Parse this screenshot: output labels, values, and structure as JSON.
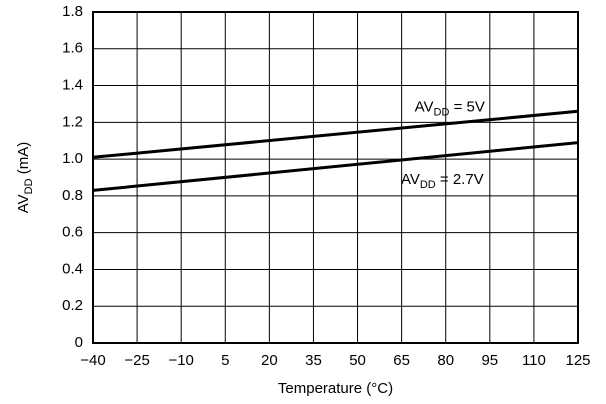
{
  "chart_data": {
    "type": "line",
    "title": "",
    "xlabel": "Temperature (°C)",
    "ylabel": {
      "base": "AV",
      "sub": "DD",
      "suffix": " (mA)"
    },
    "xlim": [
      -40,
      125
    ],
    "ylim": [
      0,
      1.8
    ],
    "x_ticks": [
      "−40",
      "−25",
      "−10",
      "5",
      "20",
      "35",
      "50",
      "65",
      "80",
      "95",
      "110",
      "125"
    ],
    "y_ticks": [
      "0",
      "0.2",
      "0.4",
      "0.6",
      "0.8",
      "1.0",
      "1.2",
      "1.4",
      "1.6",
      "1.8"
    ],
    "grid": true,
    "series": [
      {
        "name": "AVDD = 5V",
        "label": {
          "base": "AV",
          "sub": "DD",
          "suffix": " = 5V"
        },
        "x": [
          -40,
          125
        ],
        "y": [
          1.01,
          1.26
        ]
      },
      {
        "name": "AVDD = 2.7V",
        "label": {
          "base": "AV",
          "sub": "DD",
          "suffix": " = 2.7V"
        },
        "x": [
          -40,
          125
        ],
        "y": [
          0.83,
          1.09
        ]
      }
    ]
  }
}
